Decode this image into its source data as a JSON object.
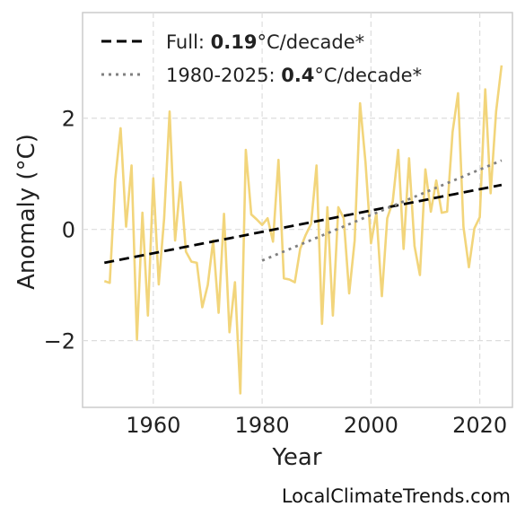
{
  "chart_data": {
    "type": "line",
    "title": "",
    "xlabel": "Year",
    "ylabel": "Anomaly (°C)",
    "xlim": [
      1947,
      2026
    ],
    "ylim": [
      -3.2,
      3.9
    ],
    "xticks": [
      1960,
      1980,
      2000,
      2020
    ],
    "yticks": [
      -2,
      0,
      2
    ],
    "ytick_labels": [
      "−2",
      "0",
      "2"
    ],
    "grid": true,
    "legend_position": "top-left",
    "series": [
      {
        "color": "#f2d57b",
        "x": [
          1951,
          1952,
          1953,
          1954,
          1955,
          1956,
          1957,
          1958,
          1959,
          1960,
          1961,
          1962,
          1963,
          1964,
          1965,
          1966,
          1967,
          1968,
          1969,
          1970,
          1971,
          1972,
          1973,
          1974,
          1975,
          1976,
          1977,
          1978,
          1979,
          1980,
          1981,
          1982,
          1983,
          1984,
          1985,
          1986,
          1987,
          1988,
          1989,
          1990,
          1991,
          1992,
          1993,
          1994,
          1995,
          1996,
          1997,
          1998,
          1999,
          2000,
          2001,
          2002,
          2003,
          2004,
          2005,
          2006,
          2007,
          2008,
          2009,
          2010,
          2011,
          2012,
          2013,
          2014,
          2015,
          2016,
          2017,
          2018,
          2019,
          2020,
          2021,
          2022,
          2023,
          2024
        ],
        "y": [
          -0.93,
          -0.96,
          0.9,
          1.82,
          0.05,
          1.15,
          -1.98,
          0.3,
          -1.55,
          0.92,
          -0.99,
          0.2,
          2.12,
          -0.2,
          0.85,
          -0.4,
          -0.58,
          -0.6,
          -1.4,
          -1.0,
          -0.2,
          -1.5,
          0.28,
          -1.85,
          -0.95,
          -2.95,
          1.43,
          0.27,
          0.18,
          0.08,
          0.2,
          -0.22,
          1.25,
          -0.88,
          -0.9,
          -0.95,
          -0.35,
          -0.1,
          0.1,
          1.15,
          -1.7,
          0.4,
          -1.55,
          0.4,
          0.2,
          -1.15,
          -0.2,
          2.27,
          1.2,
          -0.25,
          0.3,
          -1.2,
          0.2,
          0.5,
          1.43,
          -0.35,
          1.28,
          -0.3,
          -0.82,
          1.08,
          0.32,
          0.88,
          0.3,
          0.32,
          1.75,
          2.45,
          0.05,
          -0.68,
          0.02,
          0.22,
          2.52,
          0.65,
          2.12,
          2.95
        ]
      },
      {
        "name": "Full",
        "style": "dashed",
        "color": "#000000",
        "x": [
          1951,
          2024
        ],
        "y": [
          -0.6,
          0.8
        ]
      },
      {
        "name": "1980-2025",
        "style": "dotted",
        "color": "#808080",
        "x": [
          1980,
          2024
        ],
        "y": [
          -0.56,
          1.24
        ]
      }
    ],
    "legend": [
      {
        "prefix": "Full: ",
        "bold": "0.19",
        "suffix": "°C/decade*",
        "style": "dashed",
        "color": "#000000"
      },
      {
        "prefix": "1980-2025: ",
        "bold": "0.4",
        "suffix": "°C/decade*",
        "style": "dotted",
        "color": "#808080"
      }
    ],
    "credit": "LocalClimateTrends.com"
  }
}
